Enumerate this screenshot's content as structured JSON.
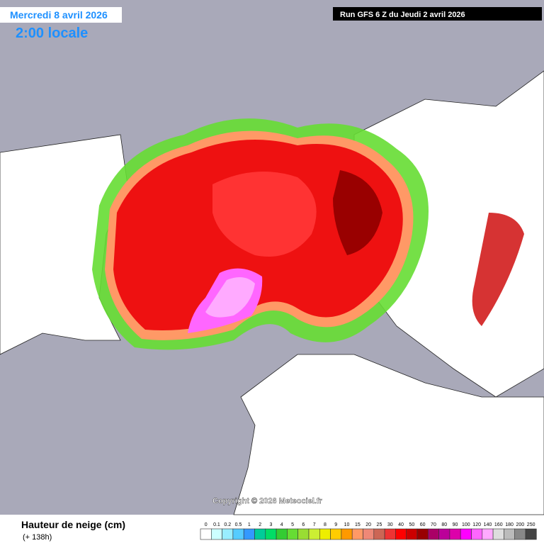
{
  "header": {
    "date": "Mercredi 8 avril 2026",
    "time": "2:00 locale",
    "run": "Run GFS 6 Z du Jeudi 2 avril 2026"
  },
  "copyright": "Copyright © 2026 Meteociel.fr",
  "footer": {
    "title": "Hauteur de neige (cm)",
    "forecast": "(+ 138h)"
  },
  "legend": [
    {
      "label": "0",
      "color": "#ffffff"
    },
    {
      "label": "0.1",
      "color": "#ccffff"
    },
    {
      "label": "0.2",
      "color": "#99eeff"
    },
    {
      "label": "0.5",
      "color": "#55ccff"
    },
    {
      "label": "1",
      "color": "#3399ff"
    },
    {
      "label": "2",
      "color": "#00cc99"
    },
    {
      "label": "3",
      "color": "#00dd66"
    },
    {
      "label": "4",
      "color": "#33cc33"
    },
    {
      "label": "5",
      "color": "#66dd33"
    },
    {
      "label": "6",
      "color": "#99dd33"
    },
    {
      "label": "7",
      "color": "#ccee33"
    },
    {
      "label": "8",
      "color": "#eeee00"
    },
    {
      "label": "9",
      "color": "#ffcc00"
    },
    {
      "label": "10",
      "color": "#ff9900"
    },
    {
      "label": "15",
      "color": "#ff9966"
    },
    {
      "label": "20",
      "color": "#ee8877"
    },
    {
      "label": "25",
      "color": "#cc6655"
    },
    {
      "label": "30",
      "color": "#ee3333"
    },
    {
      "label": "40",
      "color": "#ff0000"
    },
    {
      "label": "50",
      "color": "#cc0000"
    },
    {
      "label": "60",
      "color": "#990000"
    },
    {
      "label": "70",
      "color": "#aa0066"
    },
    {
      "label": "80",
      "color": "#bb0099"
    },
    {
      "label": "90",
      "color": "#dd00aa"
    },
    {
      "label": "100",
      "color": "#ff00ff"
    },
    {
      "label": "120",
      "color": "#ff66ff"
    },
    {
      "label": "140",
      "color": "#ffaaff"
    },
    {
      "label": "160",
      "color": "#dddddd"
    },
    {
      "label": "180",
      "color": "#bbbbbb"
    },
    {
      "label": "200",
      "color": "#888888"
    },
    {
      "label": "250",
      "color": "#444444"
    }
  ]
}
